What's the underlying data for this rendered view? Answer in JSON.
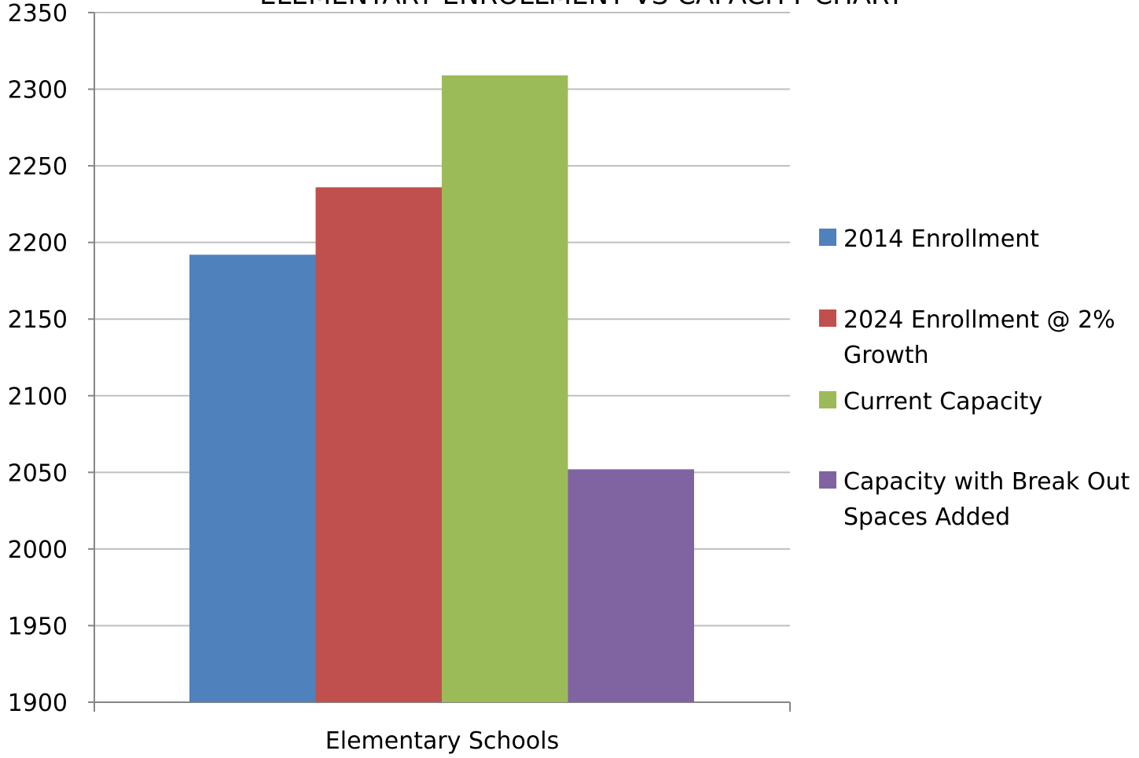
{
  "chart_data": {
    "type": "bar",
    "title": "ELEMENTARY ENROLLMENT VS CAPACITY CHART",
    "categories": [
      "Elementary Schools"
    ],
    "series": [
      {
        "name": "2014 Enrollment",
        "values": [
          2192
        ],
        "color": "#4F81BD"
      },
      {
        "name": "2024 Enrollment @ 2% Growth",
        "values": [
          2236
        ],
        "color": "#C0504D"
      },
      {
        "name": "Current Capacity",
        "values": [
          2309
        ],
        "color": "#9BBB59"
      },
      {
        "name": "Capacity with Break Out Spaces Added",
        "values": [
          2052
        ],
        "color": "#8064A2"
      }
    ],
    "xlabel": "",
    "ylabel": "",
    "ylim": [
      1900,
      2350
    ],
    "yticks": [
      1900,
      1950,
      2000,
      2050,
      2100,
      2150,
      2200,
      2250,
      2300,
      2350
    ],
    "grid": true,
    "legend": "right",
    "colors": {
      "gridline": "#BFBFBF",
      "axis": "#868686"
    }
  }
}
